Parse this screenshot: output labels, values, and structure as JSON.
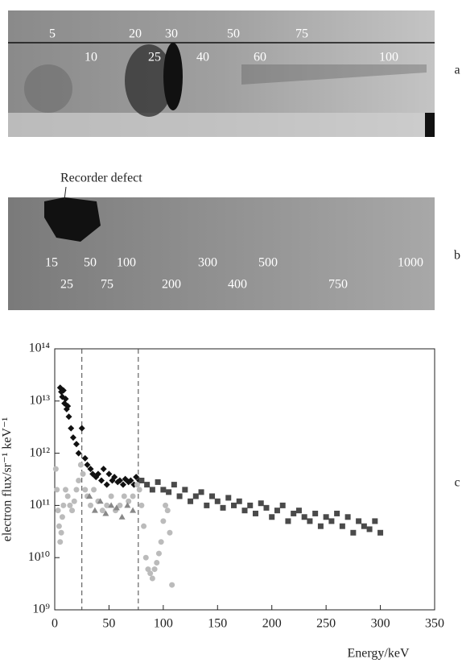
{
  "panels": {
    "a": {
      "letter": "a",
      "labels": [
        "5",
        "20",
        "30",
        "50",
        "75",
        "10",
        "25",
        "40",
        "60",
        "100"
      ]
    },
    "b": {
      "letter": "b",
      "annotation": "Recorder defect",
      "labels": [
        "15",
        "50",
        "100",
        "300",
        "500",
        "1000",
        "25",
        "75",
        "200",
        "400",
        "750"
      ]
    },
    "c": {
      "letter": "c"
    }
  },
  "chart_data": {
    "type": "scatter",
    "xlabel": "Energy/keV",
    "ylabel": "electron flux/sr⁻¹ keV⁻¹",
    "xlim": [
      0,
      350
    ],
    "xticks": [
      0,
      50,
      100,
      150,
      200,
      250,
      300,
      350
    ],
    "ylim": [
      1000000000.0,
      100000000000000.0
    ],
    "log_y": true,
    "yticks": [
      {
        "value": 1000000000.0,
        "label": "10⁹"
      },
      {
        "value": 10000000000.0,
        "label": "10¹⁰"
      },
      {
        "value": 100000000000.0,
        "label": "10¹¹"
      },
      {
        "value": 1000000000000.0,
        "label": "10¹²"
      },
      {
        "value": 10000000000000.0,
        "label": "10¹³"
      },
      {
        "value": 100000000000000.0,
        "label": "10¹⁴"
      }
    ],
    "vlines": [
      25,
      77
    ],
    "series": [
      {
        "color": "#111111",
        "marker": "diamond",
        "x": [
          5,
          6,
          7,
          8,
          9,
          10,
          11,
          12,
          13,
          15,
          17,
          20,
          22,
          25,
          28,
          30,
          33,
          35,
          38,
          40,
          43,
          45,
          48,
          50,
          53,
          55,
          58,
          60,
          63,
          65,
          68,
          70,
          73,
          75,
          78
        ],
        "values": [
          18000000000000.0,
          15000000000000.0,
          12000000000000.0,
          16000000000000.0,
          9000000000000.0,
          11000000000000.0,
          7000000000000.0,
          8000000000000.0,
          5000000000000.0,
          3000000000000.0,
          2000000000000.0,
          1500000000000.0,
          1000000000000.0,
          3000000000000.0,
          800000000000.0,
          600000000000.0,
          500000000000.0,
          400000000000.0,
          350000000000.0,
          400000000000.0,
          300000000000.0,
          500000000000.0,
          250000000000.0,
          400000000000.0,
          300000000000.0,
          350000000000.0,
          280000000000.0,
          300000000000.0,
          250000000000.0,
          320000000000.0,
          280000000000.0,
          300000000000.0,
          250000000000.0,
          350000000000.0,
          300000000000.0
        ]
      },
      {
        "color": "#4a4a4a",
        "marker": "square",
        "x": [
          80,
          85,
          90,
          95,
          100,
          105,
          110,
          115,
          120,
          125,
          130,
          135,
          140,
          145,
          150,
          155,
          160,
          165,
          170,
          175,
          180,
          185,
          190,
          195,
          200,
          205,
          210,
          215,
          220,
          225,
          230,
          235,
          240,
          245,
          250,
          255,
          260,
          265,
          270,
          275,
          280,
          285,
          290,
          295,
          300
        ],
        "values": [
          300000000000.0,
          250000000000.0,
          200000000000.0,
          280000000000.0,
          200000000000.0,
          180000000000.0,
          250000000000.0,
          150000000000.0,
          200000000000.0,
          120000000000.0,
          150000000000.0,
          180000000000.0,
          100000000000.0,
          150000000000.0,
          120000000000.0,
          90000000000.0,
          140000000000.0,
          100000000000.0,
          120000000000.0,
          80000000000.0,
          100000000000.0,
          70000000000.0,
          110000000000.0,
          90000000000.0,
          60000000000.0,
          80000000000.0,
          100000000000.0,
          50000000000.0,
          70000000000.0,
          80000000000.0,
          60000000000.0,
          50000000000.0,
          70000000000.0,
          40000000000.0,
          60000000000.0,
          50000000000.0,
          70000000000.0,
          40000000000.0,
          60000000000.0,
          30000000000.0,
          50000000000.0,
          40000000000.0,
          35000000000.0,
          50000000000.0,
          30000000000.0
        ]
      },
      {
        "color": "#bbbbbb",
        "marker": "circle",
        "x": [
          1,
          2,
          3,
          4,
          5,
          6,
          7,
          8,
          10,
          12,
          14,
          16,
          18,
          20,
          22,
          24,
          26,
          28,
          30,
          33,
          36,
          40,
          44,
          48,
          52,
          56,
          60,
          64,
          68,
          72,
          76,
          78,
          80,
          82,
          84,
          86,
          88,
          90,
          92,
          94,
          96,
          98,
          100,
          102,
          104,
          106,
          108
        ],
        "values": [
          500000000000.0,
          200000000000.0,
          80000000000.0,
          40000000000.0,
          20000000000.0,
          30000000000.0,
          60000000000.0,
          100000000000.0,
          200000000000.0,
          150000000000.0,
          100000000000.0,
          80000000000.0,
          120000000000.0,
          200000000000.0,
          300000000000.0,
          600000000000.0,
          400000000000.0,
          200000000000.0,
          150000000000.0,
          100000000000.0,
          200000000000.0,
          120000000000.0,
          80000000000.0,
          100000000000.0,
          150000000000.0,
          80000000000.0,
          100000000000.0,
          150000000000.0,
          120000000000.0,
          150000000000.0,
          250000000000.0,
          200000000000.0,
          100000000000.0,
          40000000000.0,
          10000000000.0,
          6000000000.0,
          5000000000.0,
          4000000000.0,
          6000000000.0,
          8000000000.0,
          12000000000.0,
          20000000000.0,
          50000000000.0,
          100000000000.0,
          80000000000.0,
          30000000000.0,
          3000000000.0
        ]
      },
      {
        "color": "#888888",
        "marker": "triangle",
        "x": [
          32,
          37,
          42,
          47,
          52,
          57,
          62,
          67,
          72
        ],
        "values": [
          150000000000.0,
          80000000000.0,
          120000000000.0,
          70000000000.0,
          100000000000.0,
          90000000000.0,
          60000000000.0,
          100000000000.0,
          80000000000.0
        ]
      }
    ]
  }
}
